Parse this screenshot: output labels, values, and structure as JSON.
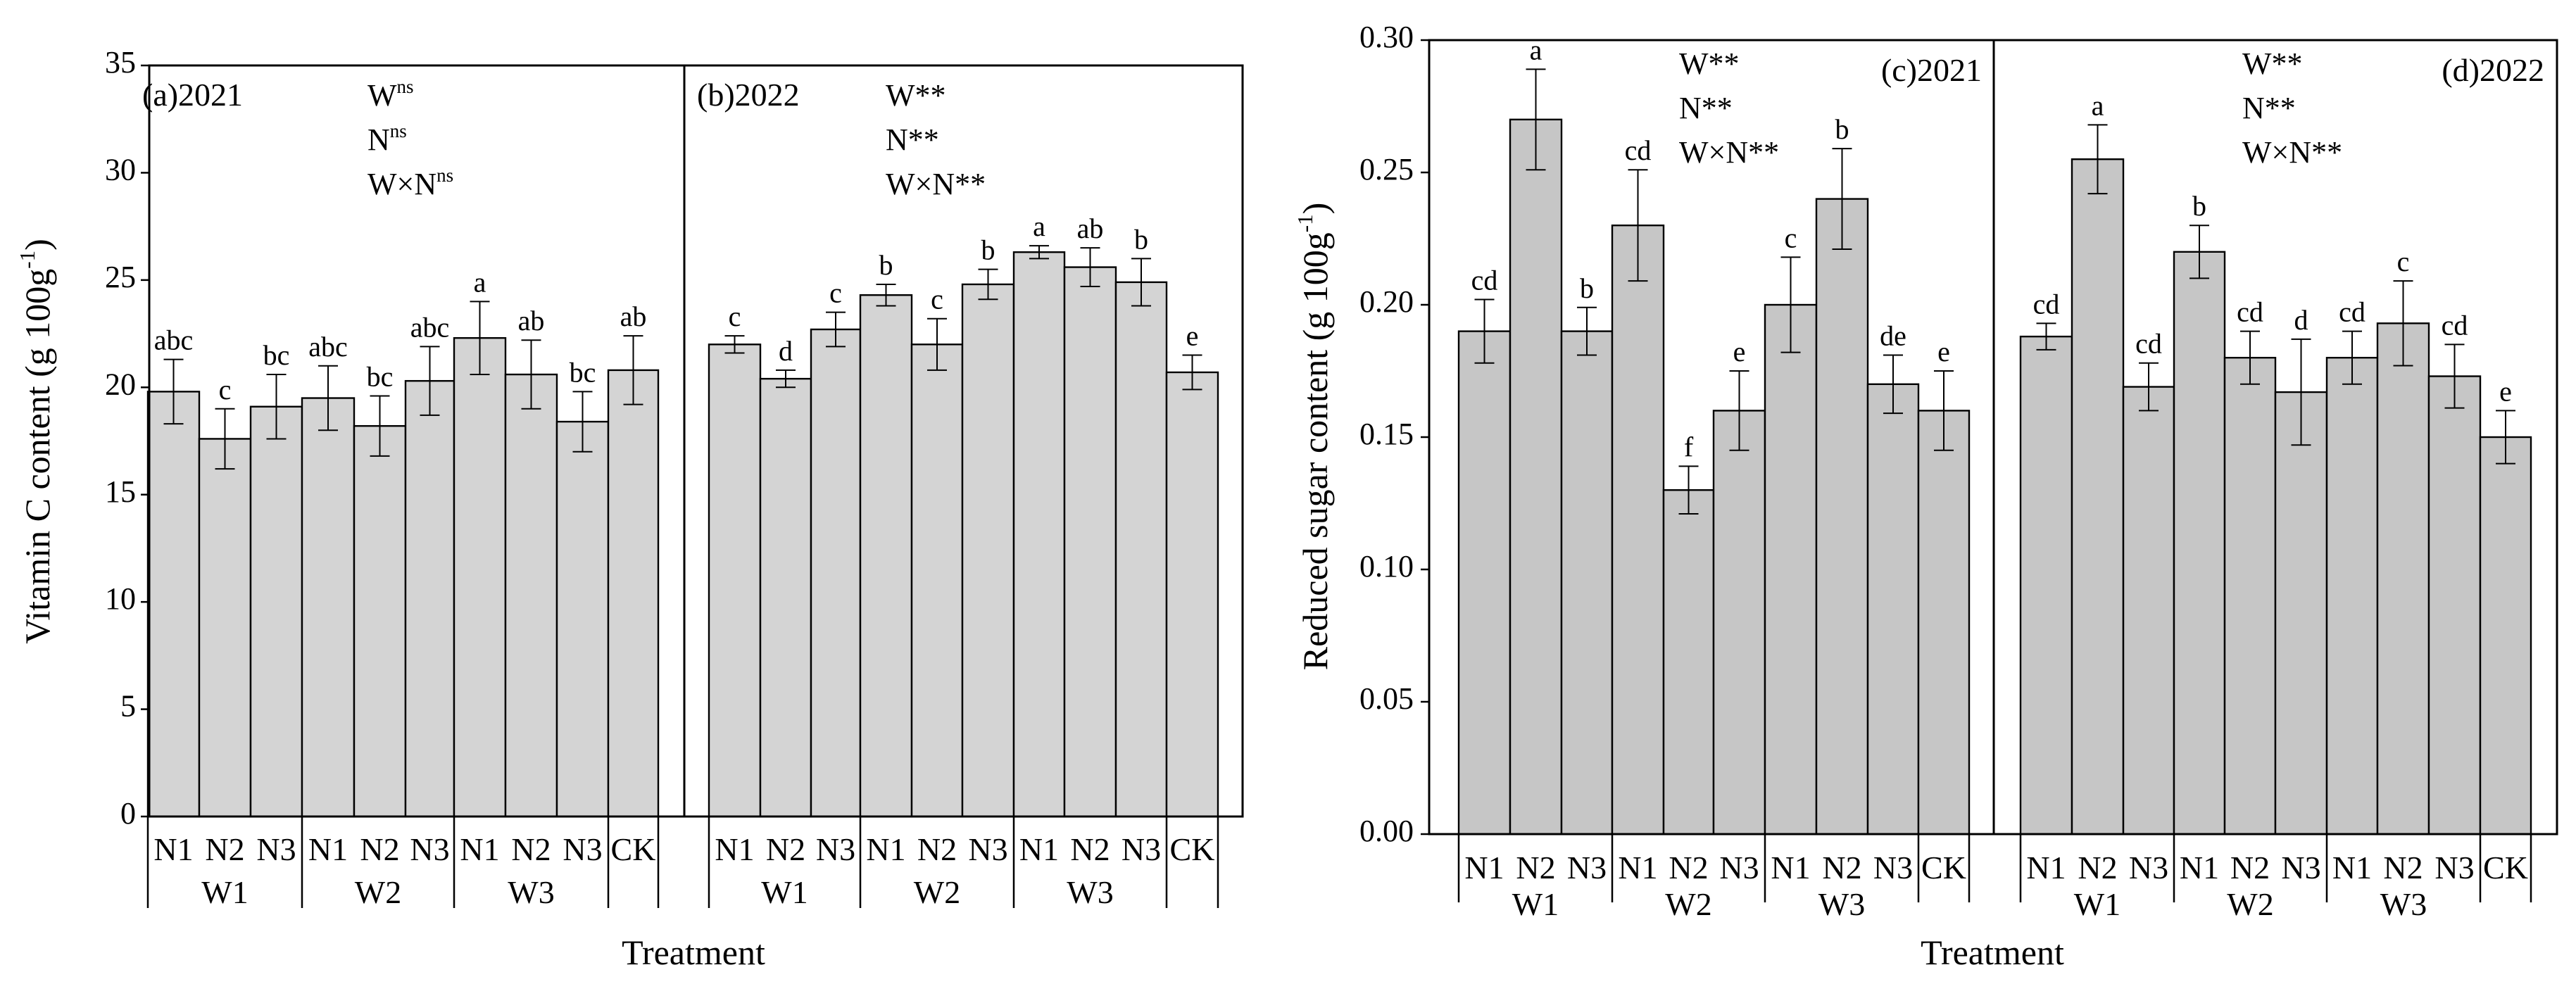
{
  "chart_data": [
    {
      "type": "bar",
      "ylabel": "Vitamin C content (g 100g",
      "ylabel_sup": "-1",
      "ylabel_close": ")",
      "xlabel": "Treatment",
      "ylim": [
        0,
        35
      ],
      "yticks": [
        "0",
        "5",
        "10",
        "15",
        "20",
        "25",
        "30",
        "35"
      ],
      "bar_color": "#d4d4d4",
      "panels": [
        {
          "title": "(a)2021",
          "significance": [
            {
              "base": "W",
              "sup": "ns"
            },
            {
              "base": "N",
              "sup": "ns"
            },
            {
              "base": "W×N",
              "sup": "ns"
            }
          ],
          "categories": [
            "W1-N1",
            "W1-N2",
            "W1-N3",
            "W2-N1",
            "W2-N2",
            "W2-N3",
            "W3-N1",
            "W3-N2",
            "W3-N3",
            "CK"
          ],
          "values": [
            19.8,
            17.6,
            19.1,
            19.5,
            18.2,
            20.3,
            22.3,
            20.6,
            18.4,
            20.8
          ],
          "errors": [
            1.5,
            1.4,
            1.5,
            1.5,
            1.4,
            1.6,
            1.7,
            1.6,
            1.4,
            1.6
          ],
          "letters": [
            "abc",
            "c",
            "bc",
            "abc",
            "bc",
            "abc",
            "a",
            "ab",
            "bc",
            "ab"
          ]
        },
        {
          "title": "(b)2022",
          "significance": [
            {
              "base": "W**",
              "sup": ""
            },
            {
              "base": "N**",
              "sup": ""
            },
            {
              "base": "W×N**",
              "sup": ""
            }
          ],
          "categories": [
            "W1-N1",
            "W1-N2",
            "W1-N3",
            "W2-N1",
            "W2-N2",
            "W2-N3",
            "W3-N1",
            "W3-N2",
            "W3-N3",
            "CK"
          ],
          "values": [
            22.0,
            20.4,
            22.7,
            24.3,
            22.0,
            24.8,
            26.3,
            25.6,
            24.9,
            20.7
          ],
          "errors": [
            0.4,
            0.4,
            0.8,
            0.5,
            1.2,
            0.7,
            0.3,
            0.9,
            1.1,
            0.8
          ],
          "letters": [
            "c",
            "d",
            "c",
            "b",
            "c",
            "b",
            "a",
            "ab",
            "b",
            "e"
          ]
        }
      ],
      "tick_labels": [
        "N1",
        "N2",
        "N3",
        "N1",
        "N2",
        "N3",
        "N1",
        "N2",
        "N3",
        "CK"
      ],
      "group_labels": [
        "W1",
        "W2",
        "W3"
      ]
    },
    {
      "type": "bar",
      "ylabel": "Reduced sugar content (g 100g",
      "ylabel_sup": "-1",
      "ylabel_close": ")",
      "xlabel": "Treatment",
      "ylim": [
        0,
        0.3
      ],
      "yticks": [
        "0.00",
        "0.05",
        "0.10",
        "0.15",
        "0.20",
        "0.25",
        "0.30"
      ],
      "bar_color": "#c6c6c6",
      "panels": [
        {
          "title": "(c)2021",
          "significance": [
            {
              "base": "W**",
              "sup": ""
            },
            {
              "base": "N**",
              "sup": ""
            },
            {
              "base": "W×N**",
              "sup": ""
            }
          ],
          "categories": [
            "W1-N1",
            "W1-N2",
            "W1-N3",
            "W2-N1",
            "W2-N2",
            "W2-N3",
            "W3-N1",
            "W3-N2",
            "W3-N3",
            "CK"
          ],
          "values": [
            0.19,
            0.27,
            0.19,
            0.23,
            0.13,
            0.16,
            0.2,
            0.24,
            0.17,
            0.16
          ],
          "errors": [
            0.012,
            0.019,
            0.009,
            0.021,
            0.009,
            0.015,
            0.018,
            0.019,
            0.011,
            0.015
          ],
          "letters": [
            "cd",
            "a",
            "b",
            "cd",
            "f",
            "e",
            "c",
            "b",
            "de",
            "e"
          ]
        },
        {
          "title": "(d)2022",
          "significance": [
            {
              "base": "W**",
              "sup": ""
            },
            {
              "base": "N**",
              "sup": ""
            },
            {
              "base": "W×N**",
              "sup": ""
            }
          ],
          "categories": [
            "W1-N1",
            "W1-N2",
            "W1-N3",
            "W2-N1",
            "W2-N2",
            "W2-N3",
            "W3-N1",
            "W3-N2",
            "W3-N3",
            "CK"
          ],
          "values": [
            0.188,
            0.255,
            0.169,
            0.22,
            0.18,
            0.167,
            0.18,
            0.193,
            0.173,
            0.15
          ],
          "errors": [
            0.005,
            0.013,
            0.009,
            0.01,
            0.01,
            0.02,
            0.01,
            0.016,
            0.012,
            0.01
          ],
          "letters": [
            "cd",
            "a",
            "cd",
            "b",
            "cd",
            "d",
            "cd",
            "c",
            "cd",
            "e"
          ]
        }
      ],
      "tick_labels": [
        "N1",
        "N2",
        "N3",
        "N1",
        "N2",
        "N3",
        "N1",
        "N2",
        "N3",
        "CK"
      ],
      "group_labels": [
        "W1",
        "W2",
        "W3"
      ]
    }
  ]
}
